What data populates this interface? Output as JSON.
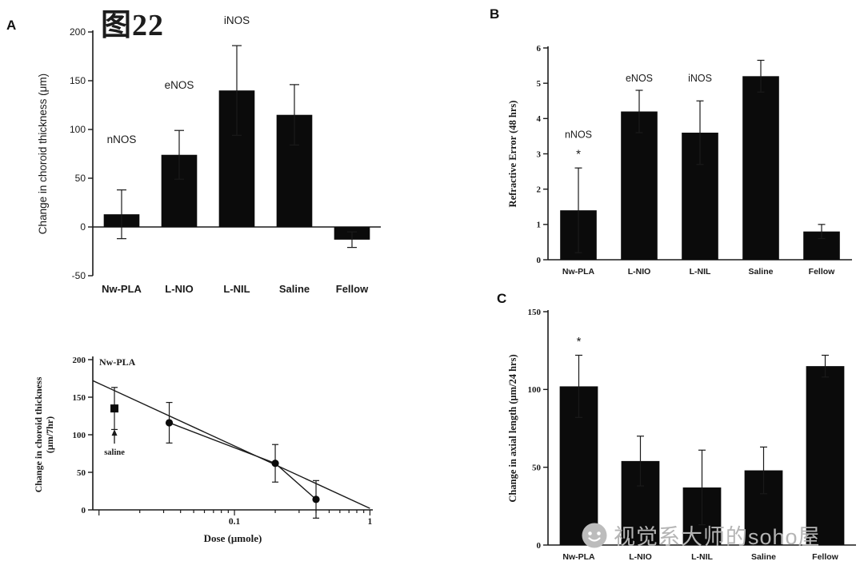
{
  "figure_title": "图22",
  "panel_labels": {
    "a": "A",
    "b": "B",
    "c": "C"
  },
  "watermark": {
    "text": "视觉系大师的soho屋",
    "icon": "smiley-face-icon",
    "color": "#b4b4b4"
  },
  "colors": {
    "bar_fill": "#0b0b0b",
    "axis": "#1a1a1a",
    "background": "#ffffff"
  },
  "chart_data": [
    {
      "id": "panel-a-bar",
      "type": "bar",
      "panel": "A",
      "ylabel": "Change in choroid thickness (μm)",
      "ylim": [
        -50,
        200
      ],
      "yticks": [
        -50,
        0,
        50,
        100,
        150,
        200
      ],
      "categories": [
        "Nw-PLA",
        "L-NIO",
        "L-NIL",
        "Saline",
        "Fellow"
      ],
      "values": [
        13,
        74,
        140,
        115,
        -13
      ],
      "errors": [
        25,
        25,
        46,
        31,
        8
      ],
      "annotations": [
        {
          "bar": 0,
          "text": "nNOS",
          "y": 86
        },
        {
          "bar": 1,
          "text": "eNOS",
          "y": 142
        },
        {
          "bar": 2,
          "text": "iNOS",
          "y": 208
        }
      ]
    },
    {
      "id": "panel-b-bar",
      "type": "bar",
      "panel": "B",
      "ylabel": "Refractive Error (48 hrs)",
      "ylim": [
        0,
        6
      ],
      "yticks": [
        0,
        1,
        2,
        3,
        4,
        5,
        6
      ],
      "categories": [
        "Nw-PLA",
        "L-NIO",
        "L-NIL",
        "Saline",
        "Fellow"
      ],
      "values": [
        1.4,
        4.2,
        3.6,
        5.2,
        0.8
      ],
      "errors": [
        1.2,
        0.6,
        0.9,
        0.45,
        0.2
      ],
      "annotations": [
        {
          "bar": 0,
          "text": "nNOS",
          "y": 3.45
        },
        {
          "bar": 0,
          "text": "*",
          "y": 3.0
        },
        {
          "bar": 1,
          "text": "eNOS",
          "y": 5.05
        },
        {
          "bar": 2,
          "text": "iNOS",
          "y": 5.05
        }
      ]
    },
    {
      "id": "panel-c-bar",
      "type": "bar",
      "panel": "C",
      "ylabel": "Change in axial length (μm/24 hrs)",
      "ylim": [
        0,
        150
      ],
      "yticks": [
        0,
        50,
        100,
        150
      ],
      "categories": [
        "Nw-PLA",
        "L-NIO",
        "L-NIL",
        "Saline",
        "Fellow"
      ],
      "values": [
        102,
        54,
        37,
        48,
        115
      ],
      "errors": [
        20,
        16,
        24,
        15,
        7
      ],
      "annotations": [
        {
          "bar": 0,
          "text": "*",
          "y": 131
        }
      ]
    },
    {
      "id": "panel-a-dose",
      "type": "scatter",
      "panel": "A",
      "inner_title": "Nw-PLA",
      "xlabel": "Dose (μmole)",
      "ylabel_lines": [
        "Change in choroid thickness",
        "(μm/7hr)"
      ],
      "xscale": "log",
      "xlim": [
        0.009,
        1.05
      ],
      "ylim": [
        0,
        200
      ],
      "yticks": [
        0,
        50,
        100,
        150,
        200
      ],
      "xticks": [
        0.1,
        1
      ],
      "points": [
        {
          "x": 0.013,
          "y": 135,
          "err": 28,
          "marker": "square",
          "label": "saline"
        },
        {
          "x": 0.033,
          "y": 116,
          "err": 27,
          "marker": "circle"
        },
        {
          "x": 0.2,
          "y": 62,
          "err": 25,
          "marker": "circle"
        },
        {
          "x": 0.4,
          "y": 14,
          "err": 25,
          "marker": "circle"
        }
      ],
      "connect_points": [
        1,
        2,
        3
      ],
      "fit_line": {
        "x1": 0.009,
        "y1": 172,
        "x2": 1.0,
        "y2": 2
      }
    }
  ]
}
